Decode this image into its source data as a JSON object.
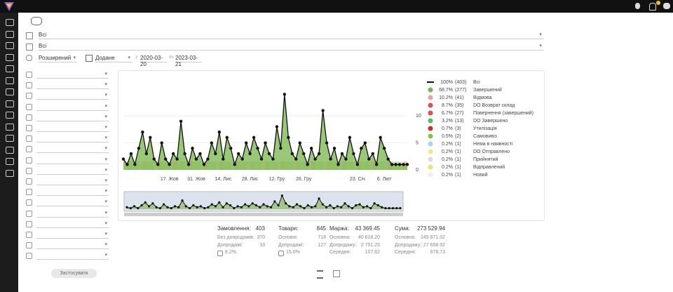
{
  "filters": {
    "row1": "Всі",
    "row2": "Всі",
    "mode": "Розширений",
    "date_type": "Додане",
    "from_label": "з",
    "from": "2020-03-20",
    "to_label": "по",
    "to": "2023-03-21",
    "apply": "Застосувати"
  },
  "chart_data": {
    "type": "area",
    "color": "#7ab648",
    "categories": [
      null,
      null,
      null,
      null,
      null,
      null,
      null,
      null,
      null,
      null,
      null,
      null,
      "17. Жов",
      null,
      null,
      null,
      null,
      null,
      null,
      "31. Жов",
      null,
      null,
      null,
      null,
      null,
      null,
      "14. Лис",
      null,
      null,
      null,
      null,
      null,
      null,
      "28. Лис",
      null,
      null,
      null,
      null,
      null,
      null,
      "12. Гру",
      null,
      null,
      null,
      null,
      null,
      null,
      "26. Гру",
      null,
      null,
      null,
      null,
      null,
      null,
      null,
      null,
      null,
      null,
      null,
      null,
      null,
      "23. Січ",
      null,
      null,
      null,
      null,
      null,
      null,
      "6. Лют",
      null,
      null,
      null,
      null,
      null,
      null
    ],
    "values": [
      2,
      1,
      3,
      1,
      4,
      7,
      3,
      6,
      2,
      1,
      5,
      2,
      1,
      3,
      2,
      9,
      3,
      1,
      4,
      2,
      3,
      1,
      2,
      5,
      3,
      7,
      2,
      6,
      4,
      1,
      3,
      2,
      5,
      3,
      6,
      4,
      2,
      5,
      3,
      2,
      8,
      4,
      14,
      6,
      3,
      2,
      5,
      3,
      1,
      4,
      2,
      3,
      11,
      5,
      2,
      4,
      1,
      3,
      2,
      6,
      3,
      1,
      4,
      5,
      2,
      3,
      1,
      6,
      4,
      2,
      1,
      1,
      1,
      1,
      1
    ],
    "ylim": [
      0,
      16
    ],
    "yticks": [
      0,
      5,
      10
    ],
    "grid": true,
    "legend": [
      {
        "percent": "100%",
        "count": "(403)",
        "name": "Всі",
        "color": "#111111"
      },
      {
        "percent": "68.7%",
        "count": "(277)",
        "name": "Завершений",
        "color": "#7ab648"
      },
      {
        "percent": "10.2%",
        "count": "(41)",
        "name": "Відмова",
        "color": "#e8a0b0"
      },
      {
        "percent": "8.7%",
        "count": "(35)",
        "name": "DO Возврат склад",
        "color": "#d9534f"
      },
      {
        "percent": "6.7%",
        "count": "(27)",
        "name": "Повернення (завершений)",
        "color": "#d9534f"
      },
      {
        "percent": "3.2%",
        "count": "(13)",
        "name": "DO Завершено",
        "color": "#5cb85c"
      },
      {
        "percent": "0.7%",
        "count": "(3)",
        "name": "Утилізація",
        "color": "#c9302c"
      },
      {
        "percent": "0.5%",
        "count": "(2)",
        "name": "Самовивіз",
        "color": "#8bc34a"
      },
      {
        "percent": "0.2%",
        "count": "(1)",
        "name": "Нема в наявності",
        "color": "#9fd9e8"
      },
      {
        "percent": "0.2%",
        "count": "(1)",
        "name": "DO Отправлено",
        "color": "#f0e68c"
      },
      {
        "percent": "0.2%",
        "count": "(1)",
        "name": "Прийнятий",
        "color": "#dddddd"
      },
      {
        "percent": "0.2%",
        "count": "(1)",
        "name": "Відправлений",
        "color": "#e6e66e"
      },
      {
        "percent": "0.2%",
        "count": "(1)",
        "name": "Новий",
        "color": "#eeeeee"
      }
    ]
  },
  "summary": [
    {
      "label": "Замовлення:",
      "value": "403",
      "rows": [
        [
          "Без допродажів:",
          "370"
        ],
        [
          "Допродажі:",
          "33"
        ],
        [
          "",
          "8.2%"
        ]
      ]
    },
    {
      "label": "Товари:",
      "value": "845",
      "rows": [
        [
          "Основні:",
          "718"
        ],
        [
          "Допродажі:",
          "127"
        ],
        [
          "",
          "15.0%"
        ]
      ]
    },
    {
      "label": "Маржа:",
      "value": "43 369.45",
      "rows": [
        [
          "Основна:",
          "40 618.20"
        ],
        [
          "Допродажу:",
          "2 751.25"
        ],
        [
          "Середня:",
          "107.62"
        ]
      ]
    },
    {
      "label": "Сума:",
      "value": "273 529.94",
      "rows": [
        [
          "Основна:",
          "245 871.02"
        ],
        [
          "Допродажу:",
          "27 658.92"
        ],
        [
          "Середня:",
          "678.73"
        ]
      ]
    }
  ]
}
